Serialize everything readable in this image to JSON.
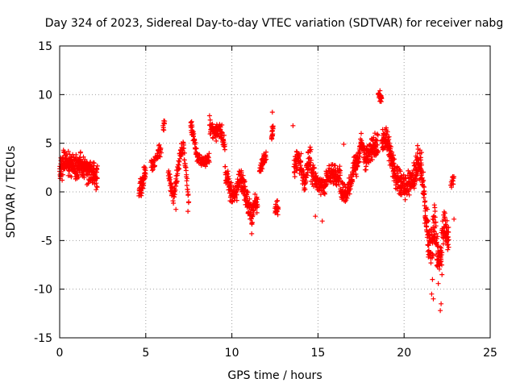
{
  "chart_data": {
    "type": "scatter",
    "title": "Day 324 of 2023, Sidereal Day-to-day VTEC variation (SDTVAR) for receiver nabg",
    "xlabel": "GPS time / hours",
    "ylabel": "SDTVAR / TECUs",
    "xlim": [
      0,
      25
    ],
    "ylim": [
      -15,
      15
    ],
    "xticks": [
      0,
      5,
      10,
      15,
      20,
      25
    ],
    "yticks": [
      -15,
      -10,
      -5,
      0,
      5,
      10,
      15
    ],
    "grid": true,
    "marker": "plus",
    "series_color": "#ff0000",
    "series": [
      {
        "name": "nabg",
        "segments": [
          {
            "x0": 0.0,
            "x1": 2.2,
            "n": 300,
            "base": [
              [
                0,
                2.0
              ],
              [
                0.3,
                3.2
              ],
              [
                0.6,
                3.0
              ],
              [
                0.9,
                2.5
              ],
              [
                1.2,
                2.8
              ],
              [
                1.5,
                2.2
              ],
              [
                1.8,
                2.0
              ],
              [
                2.2,
                1.5
              ]
            ],
            "spread": 1.5
          },
          {
            "x0": 4.6,
            "x1": 5.0,
            "n": 50,
            "base": [
              [
                4.6,
                0.0
              ],
              [
                4.8,
                1.0
              ],
              [
                5.0,
                2.0
              ]
            ],
            "spread": 1.2
          },
          {
            "x0": 5.3,
            "x1": 5.9,
            "n": 40,
            "base": [
              [
                5.3,
                2.5
              ],
              [
                5.6,
                3.5
              ],
              [
                5.9,
                4.5
              ]
            ],
            "spread": 0.8
          },
          {
            "x0": 6.0,
            "x1": 6.1,
            "n": 8,
            "base": [
              [
                6.0,
                6.5
              ],
              [
                6.1,
                7.2
              ]
            ],
            "spread": 0.6
          },
          {
            "x0": 6.3,
            "x1": 7.0,
            "n": 60,
            "base": [
              [
                6.3,
                2.0
              ],
              [
                6.6,
                -0.5
              ],
              [
                7.0,
                3.5
              ]
            ],
            "spread": 1.0
          },
          {
            "x0": 7.0,
            "x1": 7.5,
            "n": 40,
            "base": [
              [
                7.0,
                4.0
              ],
              [
                7.2,
                4.5
              ],
              [
                7.5,
                -1.0
              ]
            ],
            "spread": 1.0
          },
          {
            "x0": 7.6,
            "x1": 8.0,
            "n": 40,
            "base": [
              [
                7.6,
                7.0
              ],
              [
                7.8,
                5.5
              ],
              [
                8.0,
                3.5
              ]
            ],
            "spread": 0.8
          },
          {
            "x0": 8.0,
            "x1": 8.7,
            "n": 50,
            "base": [
              [
                8.0,
                3.5
              ],
              [
                8.4,
                3.0
              ],
              [
                8.7,
                3.5
              ]
            ],
            "spread": 0.6
          },
          {
            "x0": 8.7,
            "x1": 9.6,
            "n": 90,
            "base": [
              [
                8.7,
                7.0
              ],
              [
                9.0,
                6.0
              ],
              [
                9.3,
                6.5
              ],
              [
                9.6,
                5.0
              ]
            ],
            "spread": 1.0
          },
          {
            "x0": 9.6,
            "x1": 10.4,
            "n": 80,
            "base": [
              [
                9.6,
                2.5
              ],
              [
                9.9,
                0.0
              ],
              [
                10.2,
                -0.5
              ],
              [
                10.4,
                1.0
              ]
            ],
            "spread": 1.3
          },
          {
            "x0": 10.4,
            "x1": 11.2,
            "n": 90,
            "base": [
              [
                10.4,
                1.5
              ],
              [
                10.7,
                0.5
              ],
              [
                11.0,
                -1.5
              ],
              [
                11.2,
                -3.0
              ]
            ],
            "spread": 1.3
          },
          {
            "x0": 11.2,
            "x1": 11.5,
            "n": 30,
            "base": [
              [
                11.2,
                -2.0
              ],
              [
                11.35,
                -1.0
              ],
              [
                11.5,
                -1.5
              ]
            ],
            "spread": 1.0
          },
          {
            "x0": 11.6,
            "x1": 12.0,
            "n": 35,
            "base": [
              [
                11.6,
                2.0
              ],
              [
                11.8,
                3.0
              ],
              [
                12.0,
                4.0
              ]
            ],
            "spread": 0.8
          },
          {
            "x0": 12.3,
            "x1": 12.4,
            "n": 15,
            "base": [
              [
                12.3,
                5.5
              ],
              [
                12.4,
                7.0
              ]
            ],
            "spread": 1.0
          },
          {
            "x0": 12.5,
            "x1": 12.7,
            "n": 20,
            "base": [
              [
                12.5,
                -2.0
              ],
              [
                12.7,
                -1.5
              ]
            ],
            "spread": 1.0
          },
          {
            "x0": 13.6,
            "x1": 14.6,
            "n": 100,
            "base": [
              [
                13.6,
                2.5
              ],
              [
                13.9,
                3.5
              ],
              [
                14.2,
                1.0
              ],
              [
                14.4,
                3.0
              ],
              [
                14.6,
                4.0
              ]
            ],
            "spread": 1.5
          },
          {
            "x0": 14.6,
            "x1": 15.4,
            "n": 80,
            "base": [
              [
                14.6,
                2.0
              ],
              [
                15.0,
                1.0
              ],
              [
                15.4,
                0.5
              ]
            ],
            "spread": 1.2
          },
          {
            "x0": 15.4,
            "x1": 16.3,
            "n": 90,
            "base": [
              [
                15.4,
                1.0
              ],
              [
                15.8,
                2.0
              ],
              [
                16.1,
                1.5
              ],
              [
                16.3,
                2.0
              ]
            ],
            "spread": 1.2
          },
          {
            "x0": 16.3,
            "x1": 17.0,
            "n": 80,
            "base": [
              [
                16.3,
                0.5
              ],
              [
                16.6,
                -0.5
              ],
              [
                17.0,
                1.5
              ]
            ],
            "spread": 1.2
          },
          {
            "x0": 17.0,
            "x1": 17.7,
            "n": 80,
            "base": [
              [
                17.0,
                2.0
              ],
              [
                17.3,
                3.0
              ],
              [
                17.5,
                5.0
              ],
              [
                17.7,
                4.0
              ]
            ],
            "spread": 1.3
          },
          {
            "x0": 17.7,
            "x1": 18.5,
            "n": 90,
            "base": [
              [
                17.7,
                3.0
              ],
              [
                18.0,
                4.0
              ],
              [
                18.3,
                5.0
              ],
              [
                18.5,
                4.5
              ]
            ],
            "spread": 1.5
          },
          {
            "x0": 18.5,
            "x1": 18.7,
            "n": 25,
            "base": [
              [
                18.5,
                10.0
              ],
              [
                18.7,
                9.5
              ]
            ],
            "spread": 0.5
          },
          {
            "x0": 18.7,
            "x1": 19.5,
            "n": 110,
            "base": [
              [
                18.7,
                5.0
              ],
              [
                19.0,
                5.5
              ],
              [
                19.3,
                3.0
              ],
              [
                19.5,
                2.0
              ]
            ],
            "spread": 1.5
          },
          {
            "x0": 19.5,
            "x1": 20.5,
            "n": 110,
            "base": [
              [
                19.5,
                1.5
              ],
              [
                19.8,
                1.0
              ],
              [
                20.1,
                0.5
              ],
              [
                20.5,
                1.5
              ]
            ],
            "spread": 1.5
          },
          {
            "x0": 20.5,
            "x1": 21.2,
            "n": 90,
            "base": [
              [
                20.5,
                1.0
              ],
              [
                20.8,
                3.0
              ],
              [
                21.0,
                2.5
              ],
              [
                21.2,
                -1.0
              ]
            ],
            "spread": 2.0
          },
          {
            "x0": 21.2,
            "x1": 22.3,
            "n": 150,
            "base": [
              [
                21.2,
                -2.0
              ],
              [
                21.5,
                -6.0
              ],
              [
                21.8,
                -3.0
              ],
              [
                22.0,
                -8.0
              ],
              [
                22.3,
                -4.0
              ]
            ],
            "spread": 2.5
          },
          {
            "x0": 22.3,
            "x1": 22.6,
            "n": 40,
            "base": [
              [
                22.3,
                -3.0
              ],
              [
                22.6,
                -5.0
              ]
            ],
            "spread": 1.5
          },
          {
            "x0": 22.7,
            "x1": 22.9,
            "n": 12,
            "base": [
              [
                22.7,
                0.5
              ],
              [
                22.9,
                1.5
              ]
            ],
            "spread": 0.6
          }
        ],
        "points": [
          {
            "x": 21.6,
            "y": -10.5
          },
          {
            "x": 21.65,
            "y": -9.0
          },
          {
            "x": 21.7,
            "y": -11.0
          },
          {
            "x": 22.1,
            "y": -12.2
          },
          {
            "x": 22.15,
            "y": -11.5
          },
          {
            "x": 22.2,
            "y": -8.5
          },
          {
            "x": 12.35,
            "y": 8.2
          },
          {
            "x": 13.55,
            "y": 6.8
          },
          {
            "x": 6.05,
            "y": 7.3
          },
          {
            "x": 22.9,
            "y": -2.8
          },
          {
            "x": 16.5,
            "y": 4.9
          },
          {
            "x": 11.15,
            "y": -4.3
          },
          {
            "x": 7.45,
            "y": -2.0
          },
          {
            "x": 6.75,
            "y": -1.8
          },
          {
            "x": 14.85,
            "y": -2.5
          },
          {
            "x": 15.25,
            "y": -3.0
          },
          {
            "x": 18.6,
            "y": 10.4
          },
          {
            "x": 18.65,
            "y": 9.6
          }
        ]
      }
    ]
  }
}
